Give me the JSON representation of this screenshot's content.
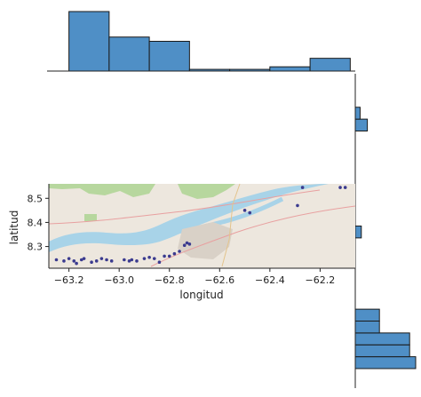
{
  "chart_data": {
    "type": "scatter",
    "subtype": "joint plot with marginal histograms over a map background",
    "xlabel": "longitud",
    "ylabel": "latitud",
    "xlim": [
      -63.28,
      -62.06
    ],
    "ylim": [
      8.21,
      8.56
    ],
    "x_ticks": [
      {
        "value": -63.2,
        "label": "−63.2"
      },
      {
        "value": -63.0,
        "label": "−63.0"
      },
      {
        "value": -62.8,
        "label": "−62.8"
      },
      {
        "value": -62.6,
        "label": "−62.6"
      },
      {
        "value": -62.4,
        "label": "−62.4"
      },
      {
        "value": -62.2,
        "label": "−62.2"
      }
    ],
    "y_ticks": [
      {
        "value": 8.3,
        "label": "8.3"
      },
      {
        "value": 8.4,
        "label": "8.4"
      },
      {
        "value": 8.5,
        "label": "8.5"
      }
    ],
    "points": [
      {
        "x": -63.25,
        "y": 8.245
      },
      {
        "x": -63.22,
        "y": 8.24
      },
      {
        "x": -63.2,
        "y": 8.25
      },
      {
        "x": -63.18,
        "y": 8.24
      },
      {
        "x": -63.15,
        "y": 8.245
      },
      {
        "x": -63.14,
        "y": 8.25
      },
      {
        "x": -63.11,
        "y": 8.235
      },
      {
        "x": -63.09,
        "y": 8.24
      },
      {
        "x": -63.07,
        "y": 8.25
      },
      {
        "x": -63.05,
        "y": 8.245
      },
      {
        "x": -63.03,
        "y": 8.24
      },
      {
        "x": -63.17,
        "y": 8.23
      },
      {
        "x": -62.98,
        "y": 8.245
      },
      {
        "x": -62.96,
        "y": 8.24
      },
      {
        "x": -62.95,
        "y": 8.245
      },
      {
        "x": -62.93,
        "y": 8.24
      },
      {
        "x": -62.9,
        "y": 8.25
      },
      {
        "x": -62.88,
        "y": 8.255
      },
      {
        "x": -62.86,
        "y": 8.25
      },
      {
        "x": -62.84,
        "y": 8.235
      },
      {
        "x": -62.82,
        "y": 8.26
      },
      {
        "x": -62.8,
        "y": 8.26
      },
      {
        "x": -62.78,
        "y": 8.27
      },
      {
        "x": -62.76,
        "y": 8.28
      },
      {
        "x": -62.74,
        "y": 8.305
      },
      {
        "x": -62.73,
        "y": 8.315
      },
      {
        "x": -62.72,
        "y": 8.31
      },
      {
        "x": -62.5,
        "y": 8.45
      },
      {
        "x": -62.48,
        "y": 8.44
      },
      {
        "x": -62.29,
        "y": 8.47
      },
      {
        "x": -62.27,
        "y": 8.545
      },
      {
        "x": -62.12,
        "y": 8.545
      },
      {
        "x": -62.1,
        "y": 8.545
      }
    ],
    "point_color": "#3b3b8f",
    "bar_color": "#4f8fc6",
    "marginal_x_histogram": {
      "bin_edges": [
        -63.2,
        -63.04,
        -62.88,
        -62.72,
        -62.56,
        -62.4,
        -62.24,
        -62.08
      ],
      "counts": [
        14,
        8,
        7,
        0.4,
        0.4,
        1,
        3
      ]
    },
    "marginal_y_histogram": {
      "bin_edges": [
        8.2,
        8.225,
        8.25,
        8.275,
        8.3,
        8.325,
        8.35,
        8.375,
        8.4,
        8.425,
        8.45,
        8.475,
        8.5,
        8.525,
        8.55,
        8.575,
        8.6,
        8.625,
        8.65,
        8.675,
        8.7,
        8.725,
        8.75,
        8.775,
        8.8
      ],
      "counts": [
        10,
        9,
        9,
        4,
        4,
        0,
        0,
        0,
        0,
        0,
        0,
        1,
        0,
        0,
        0,
        0,
        0,
        0,
        0,
        0,
        2,
        0.8,
        0,
        0
      ],
      "note_counts_order": "top to bottom"
    }
  }
}
